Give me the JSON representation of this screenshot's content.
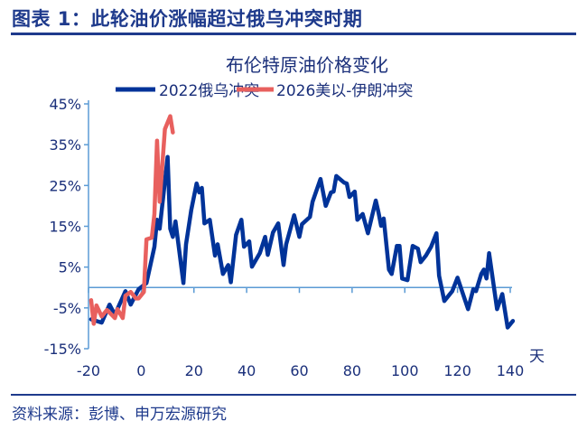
{
  "header": {
    "title": "图表 1：此轮油价涨幅超过俄乌冲突时期"
  },
  "footer": {
    "source": "资料来源：彭博、申万宏源研究"
  },
  "colors": {
    "text": "#1e3a8c",
    "axis": "#5b9bd5"
  },
  "chart_data": {
    "type": "line",
    "title": "布伦特原油价格变化",
    "xlabel": "天",
    "ylabel": "",
    "xlim": [
      -20,
      140
    ],
    "ylim": [
      -15,
      45
    ],
    "x_ticks": [
      "-20",
      "0",
      "20",
      "40",
      "60",
      "80",
      "100",
      "120",
      "140"
    ],
    "y_ticks": [
      "45%",
      "35%",
      "25%",
      "15%",
      "5%",
      "-5%",
      "-15%"
    ],
    "legend": "top",
    "grid": false,
    "series": [
      {
        "name": "2022俄乌冲突",
        "color": "#003399",
        "points": [
          [
            -19,
            -7.8
          ],
          [
            -15,
            -8.6
          ],
          [
            -12,
            -4.2
          ],
          [
            -10,
            -6.7
          ],
          [
            -6,
            -0.9
          ],
          [
            -4,
            -4.2
          ],
          [
            -1,
            -0.4
          ],
          [
            2,
            1.1
          ],
          [
            5,
            10
          ],
          [
            6,
            16.6
          ],
          [
            7,
            14.4
          ],
          [
            10,
            32
          ],
          [
            11,
            14.4
          ],
          [
            12,
            12.4
          ],
          [
            13,
            16.2
          ],
          [
            16,
            1.1
          ],
          [
            17,
            10.6
          ],
          [
            19,
            19
          ],
          [
            21,
            25.5
          ],
          [
            22,
            23.3
          ],
          [
            23,
            24.4
          ],
          [
            24,
            15.7
          ],
          [
            26,
            16.6
          ],
          [
            28,
            7.8
          ],
          [
            29,
            10.6
          ],
          [
            31,
            3.3
          ],
          [
            33,
            5.5
          ],
          [
            34,
            1.3
          ],
          [
            36,
            12.9
          ],
          [
            38,
            16.6
          ],
          [
            39,
            10
          ],
          [
            41,
            11.3
          ],
          [
            42,
            5.1
          ],
          [
            45,
            8.4
          ],
          [
            47,
            12.4
          ],
          [
            48,
            8
          ],
          [
            50,
            13.5
          ],
          [
            52,
            15.7
          ],
          [
            54,
            5.5
          ],
          [
            55,
            10.6
          ],
          [
            58,
            17.7
          ],
          [
            60,
            12.4
          ],
          [
            61,
            15.5
          ],
          [
            64,
            17.3
          ],
          [
            65,
            21
          ],
          [
            68,
            26.6
          ],
          [
            70,
            20
          ],
          [
            72,
            23.3
          ],
          [
            73,
            23.5
          ],
          [
            74,
            27.3
          ],
          [
            77,
            25.7
          ],
          [
            78,
            25.5
          ],
          [
            79,
            22.2
          ],
          [
            81,
            23.5
          ],
          [
            82,
            16.6
          ],
          [
            84,
            18
          ],
          [
            86,
            13.3
          ],
          [
            89,
            21.3
          ],
          [
            90,
            18.4
          ],
          [
            91,
            15.1
          ],
          [
            92,
            16.9
          ],
          [
            94,
            4.4
          ],
          [
            95,
            3.3
          ],
          [
            97,
            10.2
          ],
          [
            98,
            10.2
          ],
          [
            99,
            2.2
          ],
          [
            101,
            1.8
          ],
          [
            103,
            10.2
          ],
          [
            105,
            9.5
          ],
          [
            106,
            6.2
          ],
          [
            108,
            7.8
          ],
          [
            110,
            10
          ],
          [
            112,
            13.3
          ],
          [
            113,
            2.9
          ],
          [
            115,
            -3.3
          ],
          [
            118,
            -0.9
          ],
          [
            120,
            2.4
          ],
          [
            124,
            -5.3
          ],
          [
            126,
            -0.4
          ],
          [
            127,
            -0.9
          ],
          [
            129,
            3.3
          ],
          [
            130,
            4.4
          ],
          [
            131,
            2.2
          ],
          [
            132,
            8.4
          ],
          [
            135,
            -5.3
          ],
          [
            137,
            -1.6
          ],
          [
            139,
            -9.8
          ],
          [
            141,
            -8.2
          ]
        ]
      },
      {
        "name": "2026美以-伊朗冲突",
        "color": "#e8605e",
        "points": [
          [
            -19,
            -3.1
          ],
          [
            -18,
            -8.9
          ],
          [
            -17,
            -4.4
          ],
          [
            -15,
            -7.1
          ],
          [
            -13,
            -5.5
          ],
          [
            -10,
            -7.5
          ],
          [
            -9,
            -5.3
          ],
          [
            -7,
            -7.5
          ],
          [
            -6,
            -2
          ],
          [
            -4,
            -1.1
          ],
          [
            -2,
            -2.7
          ],
          [
            -1,
            -2.7
          ],
          [
            1,
            -1.1
          ],
          [
            2,
            11.8
          ],
          [
            4,
            12.2
          ],
          [
            5,
            18
          ],
          [
            6,
            36
          ],
          [
            7,
            21
          ],
          [
            9,
            38.8
          ],
          [
            11,
            42
          ],
          [
            12,
            38
          ]
        ]
      }
    ]
  }
}
